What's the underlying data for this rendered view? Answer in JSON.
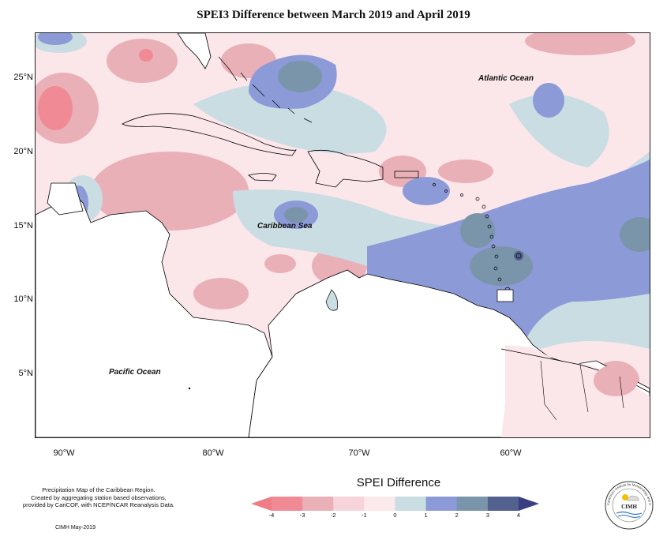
{
  "title": "SPEI3 Difference between March 2019 and April 2019",
  "axes": {
    "lat_labels": [
      "25°N",
      "20°N",
      "15°N",
      "10°N",
      "5°N"
    ],
    "lon_labels": [
      "90°W",
      "80°W",
      "70°W",
      "60°W"
    ]
  },
  "labels": {
    "atlantic": "Atlantic Ocean",
    "caribbean": "Caribbean Sea",
    "pacific": "Pacific Ocean"
  },
  "credit": {
    "line1": "Precipitation Map of the Caribbean Region.",
    "line2": "Created by aggregating station based observations,",
    "line3": "provided by CariCOF, with NCEP/NCAR Reanalysis Data.",
    "date": "CIMH May-2019"
  },
  "legend": {
    "title": "SPEI Difference",
    "ticks": [
      "-4",
      "-3",
      "-2",
      "-1",
      "0",
      "1",
      "2",
      "3",
      "4"
    ],
    "colors": [
      "#f08a94",
      "#eab0b8",
      "#f7d4da",
      "#fbe9ec",
      "#c9dde3",
      "#8c9ad8",
      "#7a95aa",
      "#53618f"
    ],
    "arrow_low": "#f07c86",
    "arrow_high": "#3a3f84"
  },
  "logo": {
    "text": "CIMH",
    "ring_text": "Caribbean Institute for Meteorology and Hydrology"
  }
}
